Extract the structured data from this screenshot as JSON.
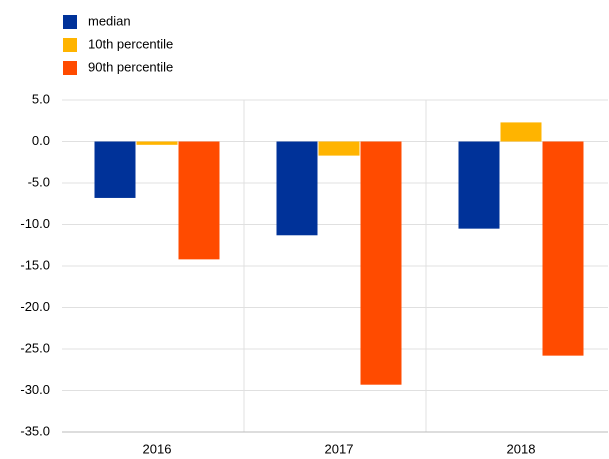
{
  "chart_data": {
    "type": "bar",
    "categories": [
      "2016",
      "2017",
      "2018"
    ],
    "series": [
      {
        "name": "median",
        "color": "#003299",
        "values": [
          -6.8,
          -11.3,
          -10.5
        ]
      },
      {
        "name": "10th percentile",
        "color": "#ffb400",
        "values": [
          -0.4,
          -1.7,
          2.3
        ]
      },
      {
        "name": "90th percentile",
        "color": "#ff4b00",
        "values": [
          -14.2,
          -29.3,
          -25.8
        ]
      }
    ],
    "ylim": [
      -35,
      5
    ],
    "yticks": [
      {
        "value": 5,
        "label": "5.0"
      },
      {
        "value": 0,
        "label": "0.0"
      },
      {
        "value": -5,
        "label": "-5.0"
      },
      {
        "value": -10,
        "label": "-10.0"
      },
      {
        "value": -15,
        "label": "-15.0"
      },
      {
        "value": -20,
        "label": "-20.0"
      },
      {
        "value": -25,
        "label": "-25.0"
      },
      {
        "value": -30,
        "label": "-30.0"
      },
      {
        "value": -35,
        "label": "-35.0"
      }
    ],
    "grid": true
  }
}
